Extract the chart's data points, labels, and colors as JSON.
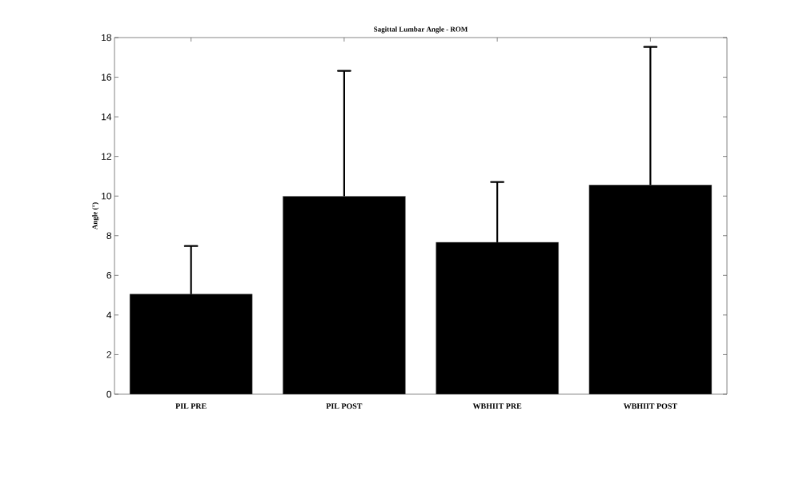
{
  "chart_data": {
    "type": "bar",
    "title": "Sagittal Lumbar Angle - ROM",
    "ylabel": "Angle (°)",
    "categories": [
      "PIL PRE",
      "PIL POST",
      "WBHIIT PRE",
      "WBHIIT POST"
    ],
    "values": [
      5.05,
      9.99,
      7.67,
      10.56
    ],
    "errors": [
      [
        5.05,
        7.48
      ],
      [
        9.99,
        16.32
      ],
      [
        7.67,
        10.71
      ],
      [
        10.56,
        17.53
      ]
    ],
    "color": "#000000",
    "ylim": [
      0,
      18
    ],
    "yticks": [
      0,
      2,
      4,
      6,
      8,
      10,
      12,
      14,
      16,
      18
    ],
    "grid": false
  }
}
